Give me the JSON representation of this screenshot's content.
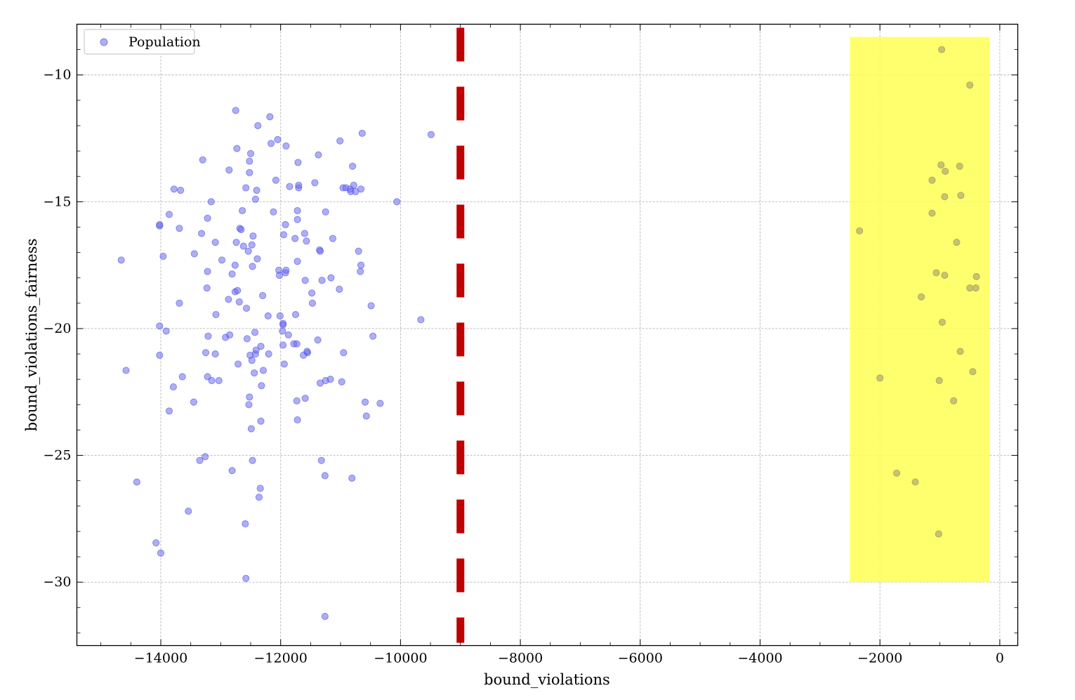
{
  "chart_data": {
    "type": "scatter",
    "title": "",
    "xlabel": "bound_violations",
    "ylabel": "bound_violations_fairness",
    "xlim": [
      -15400,
      300
    ],
    "ylim": [
      -32.5,
      -8
    ],
    "xticks": [
      -14000,
      -12000,
      -10000,
      -8000,
      -6000,
      -4000,
      -2000,
      0
    ],
    "xtick_labels": [
      "−14000",
      "−12000",
      "−10000",
      "−8000",
      "−6000",
      "−4000",
      "−2000",
      "0"
    ],
    "yticks": [
      -10,
      -15,
      -20,
      -25,
      -30
    ],
    "ytick_labels": [
      "−10",
      "−15",
      "−20",
      "−25",
      "−30"
    ],
    "grid": true,
    "legend": {
      "position": "top-left",
      "entries": [
        "Population"
      ]
    },
    "series": [
      {
        "name": "Population",
        "color": "#6b6bf0",
        "alpha": 0.55,
        "points": [
          [
            -14660,
            -17.3
          ],
          [
            -14580,
            -21.65
          ],
          [
            -14400,
            -26.05
          ],
          [
            -14080,
            -28.45
          ],
          [
            -14000,
            -28.85
          ],
          [
            -14020,
            -15.95
          ],
          [
            -14020,
            -15.9
          ],
          [
            -14020,
            -19.9
          ],
          [
            -14020,
            -21.05
          ],
          [
            -13960,
            -17.15
          ],
          [
            -13910,
            -20.1
          ],
          [
            -13860,
            -23.25
          ],
          [
            -13860,
            -15.5
          ],
          [
            -13790,
            -22.3
          ],
          [
            -13780,
            -14.5
          ],
          [
            -13690,
            -19
          ],
          [
            -13690,
            -16.05
          ],
          [
            -13670,
            -14.55
          ],
          [
            -13640,
            -21.9
          ],
          [
            -13540,
            -27.2
          ],
          [
            -13450,
            -22.9
          ],
          [
            -13440,
            -17.05
          ],
          [
            -13350,
            -25.2
          ],
          [
            -13320,
            -16.25
          ],
          [
            -13300,
            -13.35
          ],
          [
            -13260,
            -25.05
          ],
          [
            -13250,
            -20.95
          ],
          [
            -13230,
            -18.4
          ],
          [
            -13220,
            -21.9
          ],
          [
            -13220,
            -17.75
          ],
          [
            -13220,
            -15.65
          ],
          [
            -13210,
            -20.3
          ],
          [
            -13160,
            -15
          ],
          [
            -13150,
            -22.05
          ],
          [
            -13090,
            -21
          ],
          [
            -13090,
            -16.6
          ],
          [
            -13080,
            -19.45
          ],
          [
            -13030,
            -22.05
          ],
          [
            -12980,
            -17.3
          ],
          [
            -12920,
            -20.35
          ],
          [
            -12870,
            -18.85
          ],
          [
            -12850,
            -20.25
          ],
          [
            -12860,
            -13.75
          ],
          [
            -12810,
            -17.85
          ],
          [
            -12810,
            -25.6
          ],
          [
            -12760,
            -17.5
          ],
          [
            -12750,
            -11.4
          ],
          [
            -12760,
            -18.55
          ],
          [
            -12740,
            -16.6
          ],
          [
            -12730,
            -12.9
          ],
          [
            -12720,
            -18.5
          ],
          [
            -12710,
            -21.4
          ],
          [
            -12690,
            -18.95
          ],
          [
            -12680,
            -16.05
          ],
          [
            -12660,
            -16.1
          ],
          [
            -12640,
            -15.35
          ],
          [
            -12620,
            -16.75
          ],
          [
            -12590,
            -27.7
          ],
          [
            -12580,
            -29.85
          ],
          [
            -12580,
            -14.45
          ],
          [
            -12570,
            -19.2
          ],
          [
            -12560,
            -20.4
          ],
          [
            -12540,
            -16.95
          ],
          [
            -12530,
            -23
          ],
          [
            -12520,
            -22.7
          ],
          [
            -12520,
            -13.4
          ],
          [
            -12520,
            -13.85
          ],
          [
            -12510,
            -21.05
          ],
          [
            -12500,
            -13.1
          ],
          [
            -12490,
            -23.95
          ],
          [
            -12480,
            -16.7
          ],
          [
            -12480,
            -21.25
          ],
          [
            -12470,
            -25.2
          ],
          [
            -12470,
            -17.55
          ],
          [
            -12460,
            -16.35
          ],
          [
            -12440,
            -21.75
          ],
          [
            -12430,
            -20.15
          ],
          [
            -12420,
            -21
          ],
          [
            -12420,
            -14.9
          ],
          [
            -12410,
            -20.85
          ],
          [
            -12400,
            -14.55
          ],
          [
            -12390,
            -17.25
          ],
          [
            -12380,
            -12
          ],
          [
            -12360,
            -26.65
          ],
          [
            -12340,
            -26.3
          ],
          [
            -12330,
            -20.7
          ],
          [
            -12330,
            -23.65
          ],
          [
            -12320,
            -22.25
          ],
          [
            -12300,
            -18.7
          ],
          [
            -12290,
            -21.65
          ],
          [
            -12210,
            -19.5
          ],
          [
            -12200,
            -21
          ],
          [
            -12180,
            -11.65
          ],
          [
            -12160,
            -12.7
          ],
          [
            -12120,
            -15.4
          ],
          [
            -12080,
            -14.15
          ],
          [
            -12050,
            -12.55
          ],
          [
            -12030,
            -17.7
          ],
          [
            -12020,
            -17.9
          ],
          [
            -12010,
            -19.5
          ],
          [
            -11970,
            -20.1
          ],
          [
            -11960,
            -19.8
          ],
          [
            -11960,
            -19.85
          ],
          [
            -11960,
            -20.65
          ],
          [
            -11950,
            -16.3
          ],
          [
            -11940,
            -21.4
          ],
          [
            -11920,
            -17.8
          ],
          [
            -11910,
            -17.7
          ],
          [
            -11920,
            -15.9
          ],
          [
            -11910,
            -12.8
          ],
          [
            -11870,
            -20.25
          ],
          [
            -11850,
            -14.4
          ],
          [
            -11780,
            -20.6
          ],
          [
            -11760,
            -16.45
          ],
          [
            -11750,
            -19.45
          ],
          [
            -11730,
            -20.6
          ],
          [
            -11730,
            -22.85
          ],
          [
            -11720,
            -23.6
          ],
          [
            -11720,
            -17.35
          ],
          [
            -11720,
            -15.7
          ],
          [
            -11720,
            -15.35
          ],
          [
            -11710,
            -13.45
          ],
          [
            -11700,
            -14.45
          ],
          [
            -11700,
            -14.35
          ],
          [
            -11620,
            -21.05
          ],
          [
            -11600,
            -16.25
          ],
          [
            -11590,
            -18.1
          ],
          [
            -11590,
            -22.75
          ],
          [
            -11570,
            -16.55
          ],
          [
            -11550,
            -20.95
          ],
          [
            -11560,
            -20.9
          ],
          [
            -11480,
            -18.6
          ],
          [
            -11470,
            -19
          ],
          [
            -11430,
            -14.25
          ],
          [
            -11380,
            -20.45
          ],
          [
            -11370,
            -13.15
          ],
          [
            -11350,
            -16.9
          ],
          [
            -11340,
            -16.95
          ],
          [
            -11340,
            -22.15
          ],
          [
            -11320,
            -25.2
          ],
          [
            -11310,
            -18.1
          ],
          [
            -11260,
            -31.35
          ],
          [
            -11260,
            -25.8
          ],
          [
            -11250,
            -15.4
          ],
          [
            -11250,
            -22.05
          ],
          [
            -11170,
            -22
          ],
          [
            -11160,
            -18
          ],
          [
            -11130,
            -16.45
          ],
          [
            -11020,
            -18.45
          ],
          [
            -11010,
            -12.6
          ],
          [
            -10980,
            -22.1
          ],
          [
            -10960,
            -14.45
          ],
          [
            -10950,
            -20.95
          ],
          [
            -10910,
            -14.45
          ],
          [
            -10840,
            -14.5
          ],
          [
            -10830,
            -14.6
          ],
          [
            -10810,
            -25.9
          ],
          [
            -10800,
            -13.6
          ],
          [
            -10780,
            -14.35
          ],
          [
            -10750,
            -14.6
          ],
          [
            -10700,
            -16.95
          ],
          [
            -10670,
            -17.75
          ],
          [
            -10660,
            -14.5
          ],
          [
            -10660,
            -17.5
          ],
          [
            -10640,
            -12.3
          ],
          [
            -10590,
            -22.9
          ],
          [
            -10570,
            -23.45
          ],
          [
            -10490,
            -19.1
          ],
          [
            -10460,
            -20.3
          ],
          [
            -10340,
            -22.95
          ],
          [
            -10060,
            -15
          ],
          [
            -9660,
            -19.65
          ],
          [
            -9490,
            -12.35
          ]
        ]
      }
    ],
    "highlighted_points": [
      [
        -2340,
        -16.15
      ],
      [
        -2000,
        -21.95
      ],
      [
        -1720,
        -25.7
      ],
      [
        -1410,
        -26.05
      ],
      [
        -1310,
        -18.75
      ],
      [
        -1130,
        -14.15
      ],
      [
        -1130,
        -15.45
      ],
      [
        -1060,
        -17.8
      ],
      [
        -1020,
        -28.1
      ],
      [
        -1010,
        -22.05
      ],
      [
        -980,
        -13.55
      ],
      [
        -970,
        -9
      ],
      [
        -960,
        -19.75
      ],
      [
        -920,
        -14.8
      ],
      [
        -920,
        -17.9
      ],
      [
        -910,
        -13.8
      ],
      [
        -770,
        -22.85
      ],
      [
        -720,
        -16.6
      ],
      [
        -670,
        -13.6
      ],
      [
        -660,
        -20.9
      ],
      [
        -650,
        -14.75
      ],
      [
        -500,
        -10.4
      ],
      [
        -500,
        -18.4
      ],
      [
        -450,
        -21.7
      ],
      [
        -400,
        -18.4
      ],
      [
        -390,
        -17.95
      ]
    ],
    "highlight_region": {
      "x": [
        -2500,
        -170
      ],
      "y": [
        -30,
        -8.5
      ],
      "color": "#ffff55"
    },
    "threshold_line": {
      "x": -9000,
      "color": "#c00000",
      "style": "dashed"
    }
  }
}
